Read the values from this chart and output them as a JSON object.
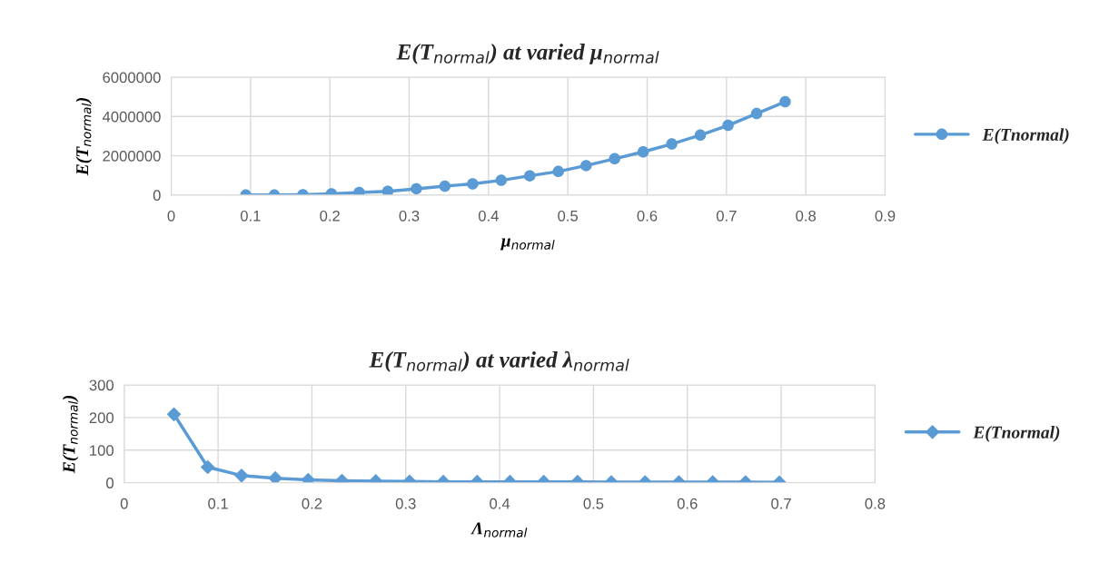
{
  "chart_data": [
    {
      "type": "line",
      "title": "E(T$_{normal}$) at varied μ$_{normal}$",
      "xlabel": "μ$_{normal}$",
      "ylabel": "E(T$_{normal}$)",
      "x": [
        0.094,
        0.13,
        0.166,
        0.202,
        0.237,
        0.273,
        0.309,
        0.345,
        0.38,
        0.416,
        0.452,
        0.488,
        0.523,
        0.559,
        0.595,
        0.631,
        0.667,
        0.702,
        0.738,
        0.774
      ],
      "series": [
        {
          "name": "E(Tnormal)",
          "color": "#5b9bd5",
          "values": [
            0,
            0,
            20000,
            60000,
            130000,
            190000,
            320000,
            450000,
            570000,
            750000,
            980000,
            1200000,
            1500000,
            1850000,
            2200000,
            2600000,
            3050000,
            3550000,
            4150000,
            4750000
          ]
        }
      ],
      "xlim": [
        0,
        0.9
      ],
      "xticks": [
        0,
        0.1,
        0.2,
        0.3,
        0.4,
        0.5,
        0.6,
        0.7,
        0.8,
        0.9
      ],
      "ylim": [
        0,
        6000000
      ],
      "yticks": [
        0,
        2000000,
        4000000,
        6000000
      ],
      "grid": true,
      "legend": "right",
      "marker": "circle",
      "line_style": "solid"
    },
    {
      "type": "line",
      "title": "E(T$_{normal}$) at varied λ$_{normal}$",
      "xlabel": "Λ$_{normal}$",
      "ylabel": "E(T$_{normal}$)",
      "x": [
        0.053,
        0.089,
        0.125,
        0.161,
        0.196,
        0.232,
        0.268,
        0.304,
        0.34,
        0.376,
        0.411,
        0.447,
        0.483,
        0.519,
        0.555,
        0.591,
        0.627,
        0.662,
        0.698
      ],
      "series": [
        {
          "name": "E(Tnormal)",
          "color": "#5b9bd5",
          "values": [
            210,
            48,
            22,
            14,
            9,
            6,
            5,
            4,
            3,
            3,
            3,
            3,
            3,
            2,
            2,
            2,
            2,
            2,
            1
          ]
        }
      ],
      "xlim": [
        0,
        0.8
      ],
      "xticks": [
        0,
        0.1,
        0.2,
        0.3,
        0.4,
        0.5,
        0.6,
        0.7,
        0.8
      ],
      "ylim": [
        0,
        300
      ],
      "yticks": [
        0,
        100,
        200,
        300
      ],
      "grid": true,
      "legend": "right",
      "marker": "diamond",
      "line_style": "solid"
    }
  ]
}
